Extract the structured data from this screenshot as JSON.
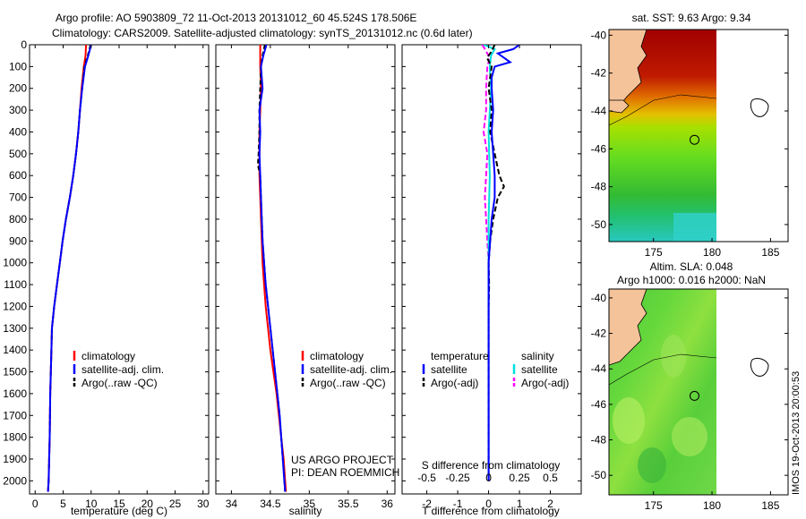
{
  "header": {
    "line1": "Argo profile: AO 5903809_72 11-Oct-2013 20131012_60 45.524S 178.506E",
    "line2": "Climatology: CARS2009. Satellite-adjusted climatology: synTS_20131012.nc (0.6d later)"
  },
  "colors": {
    "climatology": "#ff0000",
    "satellite": "#0000ff",
    "argo": "#000000",
    "sal_satellite": "#00e0e0",
    "sal_argo": "#ff00ff",
    "land": "#f5c39a"
  },
  "chart_data": [
    {
      "type": "line",
      "id": "temperature",
      "xlabel": "temperature (deg C)",
      "xlim": [
        -1,
        31
      ],
      "ylim": [
        2060,
        0
      ],
      "xticks": [
        "0",
        "5",
        "10",
        "15",
        "20",
        "25",
        "30"
      ],
      "yticks": [
        "0",
        "100",
        "200",
        "300",
        "400",
        "500",
        "600",
        "700",
        "800",
        "900",
        "1000",
        "1100",
        "1200",
        "1300",
        "1400",
        "1500",
        "1600",
        "1700",
        "1800",
        "1900",
        "2000"
      ],
      "legend": [
        "climatology",
        "satellite-adj. clim.",
        "Argo(..raw -QC)"
      ],
      "series": [
        {
          "name": "climatology",
          "depth": [
            0,
            50,
            100,
            200,
            300,
            400,
            500,
            600,
            700,
            800,
            900,
            1000,
            1100,
            1200,
            1300,
            1400,
            1600,
            1800,
            2000,
            2050
          ],
          "values": [
            9.1,
            9.0,
            8.7,
            8.3,
            8.0,
            7.7,
            7.3,
            6.8,
            6.2,
            5.5,
            4.9,
            4.4,
            3.9,
            3.4,
            3.0,
            2.9,
            2.7,
            2.6,
            2.4,
            2.3
          ]
        },
        {
          "name": "satellite-adj. clim.",
          "depth": [
            0,
            20,
            50,
            100,
            200,
            300,
            400,
            500,
            600,
            700,
            800,
            900,
            1000,
            1100,
            1200,
            1300,
            1400,
            1600,
            1800,
            2000,
            2050
          ],
          "values": [
            10.0,
            9.8,
            9.5,
            8.9,
            8.4,
            8.0,
            7.7,
            7.3,
            6.8,
            6.2,
            5.5,
            4.9,
            4.4,
            3.9,
            3.4,
            3.0,
            2.9,
            2.7,
            2.6,
            2.4,
            2.3
          ]
        },
        {
          "name": "Argo(..raw -QC)",
          "depth": [
            0,
            20,
            50,
            100,
            200,
            300,
            400,
            500,
            600,
            700,
            800,
            900,
            1000,
            1100,
            1200,
            1300,
            1400,
            1600,
            1800,
            2000,
            2050
          ],
          "values": [
            9.9,
            9.7,
            9.4,
            8.8,
            8.4,
            8.0,
            7.7,
            7.3,
            6.8,
            6.2,
            5.5,
            4.9,
            4.4,
            3.9,
            3.4,
            3.0,
            2.9,
            2.7,
            2.6,
            2.4,
            2.3
          ]
        }
      ]
    },
    {
      "type": "line",
      "id": "salinity",
      "xlabel": "salinity",
      "xlim": [
        33.8,
        36.1
      ],
      "ylim": [
        2060,
        0
      ],
      "xticks": [
        "34",
        "34.5",
        "35",
        "35.5",
        "36"
      ],
      "xtick_values": [
        34,
        34.5,
        35,
        35.5,
        36
      ],
      "legend": [
        "climatology",
        "satellite-adj. clim.",
        "Argo(..raw -QC)"
      ],
      "annotation": [
        "US ARGO PROJECT",
        "PI: DEAN ROEMMICH"
      ],
      "series": [
        {
          "name": "climatology",
          "depth": [
            0,
            100,
            200,
            300,
            400,
            500,
            600,
            700,
            800,
            900,
            1000,
            1100,
            1200,
            1300,
            1400,
            1500,
            1600,
            1700,
            1800,
            1900,
            2000,
            2050
          ],
          "values": [
            34.37,
            34.37,
            34.38,
            34.37,
            34.36,
            34.36,
            34.36,
            34.37,
            34.38,
            34.39,
            34.4,
            34.42,
            34.44,
            34.47,
            34.5,
            34.54,
            34.58,
            34.61,
            34.64,
            34.67,
            34.69,
            34.7
          ]
        },
        {
          "name": "satellite-adj. clim.",
          "depth": [
            0,
            50,
            100,
            200,
            300,
            400,
            500,
            600,
            700,
            800,
            900,
            1000,
            1100,
            1200,
            1300,
            1400,
            1500,
            1600,
            1700,
            1800,
            1900,
            2000,
            2050
          ],
          "values": [
            34.45,
            34.41,
            34.38,
            34.4,
            34.36,
            34.37,
            34.36,
            34.37,
            34.38,
            34.39,
            34.4,
            34.42,
            34.44,
            34.47,
            34.5,
            34.53,
            34.56,
            34.59,
            34.62,
            34.64,
            34.66,
            34.68,
            34.69
          ]
        },
        {
          "name": "Argo(..raw -QC)",
          "depth": [
            0,
            50,
            100,
            200,
            300,
            400,
            500,
            550,
            600,
            700,
            800,
            900,
            1000,
            1100,
            1200,
            1300,
            1400,
            1500,
            1600,
            1700,
            1800,
            1900,
            2000,
            2050
          ],
          "values": [
            34.43,
            34.4,
            34.38,
            34.37,
            34.36,
            34.36,
            34.35,
            34.34,
            34.37,
            34.38,
            34.39,
            34.4,
            34.42,
            34.44,
            34.47,
            34.5,
            34.53,
            34.56,
            34.59,
            34.62,
            34.64,
            34.66,
            34.68,
            34.69
          ]
        }
      ]
    },
    {
      "type": "line",
      "id": "difference",
      "xlabel": "T difference from climatology",
      "xlabel_top": "S difference from climatology",
      "xlim": [
        -2.8,
        3.0
      ],
      "ylim": [
        2060,
        0
      ],
      "xticks": [
        "-2",
        "-1",
        "0",
        "1",
        "2"
      ],
      "xtick_values": [
        -2,
        -1,
        0,
        1,
        2
      ],
      "sticks": [
        "-0.5",
        "-0.25",
        "0",
        "0.25",
        "0.5"
      ],
      "stick_values": [
        -0.5,
        -0.25,
        0,
        0.25,
        0.5
      ],
      "legend_t_title": "temperature",
      "legend_s_title": "salinity",
      "legend_t": [
        "satellite",
        "Argo(-adj)"
      ],
      "legend_s": [
        "satellite",
        "Argo(-adj)"
      ],
      "series": [
        {
          "name": "T satellite",
          "depth": [
            0,
            20,
            40,
            60,
            80,
            100,
            150,
            200,
            300,
            400,
            500,
            600,
            700,
            800,
            900,
            1000,
            1100,
            1200,
            1400,
            1600,
            1800,
            2000
          ],
          "values": [
            1.0,
            0.8,
            0.3,
            0.5,
            0.7,
            0.2,
            0.1,
            0.1,
            0.15,
            0.1,
            0.15,
            0.2,
            0.2,
            0.1,
            0.05,
            0.0,
            0.0,
            0.0,
            0.0,
            0.0,
            0.0,
            0.0
          ]
        },
        {
          "name": "T Argo(-adj)",
          "depth": [
            0,
            30,
            60,
            100,
            200,
            300,
            400,
            500,
            600,
            650,
            700,
            800,
            900,
            1000,
            1100,
            1200,
            1400,
            1600,
            1800,
            2000
          ],
          "values": [
            0.2,
            0.1,
            -0.05,
            0.1,
            0.0,
            0.1,
            0.05,
            0.2,
            0.35,
            0.5,
            0.3,
            0.15,
            0.05,
            0.0,
            0.02,
            0.0,
            0.0,
            0.0,
            0.0,
            0.0
          ]
        },
        {
          "name": "S satellite",
          "depth": [
            0,
            20,
            50,
            100,
            200,
            400,
            600,
            800,
            1000,
            1200,
            1500,
            1800,
            2000
          ],
          "values": [
            -0.04,
            0.05,
            0.02,
            0.01,
            0.02,
            0.0,
            0.01,
            0.0,
            0.0,
            0.0,
            0.0,
            0.0,
            0.0
          ]
        },
        {
          "name": "S Argo(-adj)",
          "depth": [
            0,
            30,
            60,
            100,
            200,
            300,
            400,
            500,
            600,
            700,
            800,
            900,
            1000,
            1200,
            1400,
            1600,
            1800,
            2000
          ],
          "values": [
            -0.05,
            -0.02,
            0.01,
            -0.01,
            -0.02,
            -0.02,
            -0.04,
            -0.01,
            -0.02,
            -0.03,
            -0.02,
            -0.01,
            0.0,
            0.0,
            0.0,
            0.0,
            0.0,
            0.0
          ]
        }
      ]
    },
    {
      "type": "heatmap",
      "id": "sst-map",
      "title": "sat. SST: 9.63 Argo: 9.34",
      "xticks": [
        "175",
        "180",
        "185"
      ],
      "xtick_values": [
        175,
        180,
        185
      ],
      "yticks": [
        "-40",
        "-42",
        "-44",
        "-46",
        "-48",
        "-50"
      ],
      "ytick_values": [
        -40,
        -42,
        -44,
        -46,
        -48,
        -50
      ],
      "xlim": [
        171.2,
        186.5
      ],
      "ylim": [
        -50.9,
        -39.7
      ],
      "float_position": [
        178.506,
        -45.524
      ],
      "data_east_limit": 180
    },
    {
      "type": "heatmap",
      "id": "sla-map",
      "title": "Altim. SLA: 0.048",
      "subtitle": "Argo h1000: 0.016 h2000: NaN",
      "xticks": [
        "175",
        "180",
        "185"
      ],
      "xtick_values": [
        175,
        180,
        185
      ],
      "yticks": [
        "-40",
        "-42",
        "-44",
        "-46",
        "-48",
        "-50"
      ],
      "ytick_values": [
        -40,
        -42,
        -44,
        -46,
        -48,
        -50
      ],
      "xlim": [
        171.2,
        186.5
      ],
      "ylim": [
        -51.1,
        -39.5
      ],
      "float_position": [
        178.506,
        -45.524
      ],
      "data_east_limit": 180
    }
  ],
  "footer": {
    "credit": "IMOS 19-Oct-2013 20:00:53"
  }
}
